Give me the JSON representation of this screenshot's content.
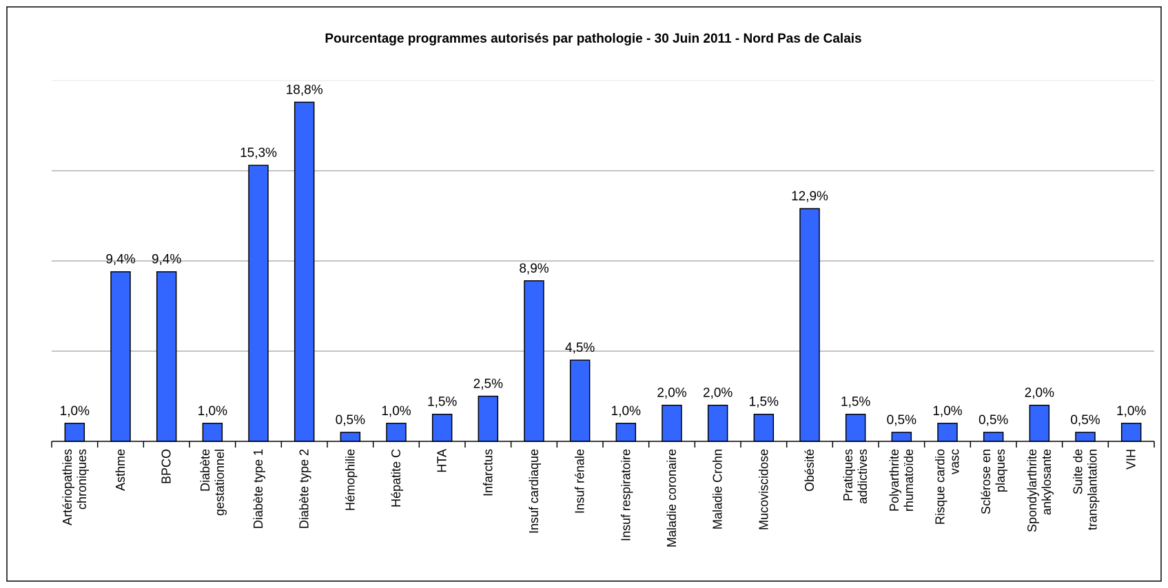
{
  "chart_data": {
    "type": "bar",
    "title": "Pourcentage programmes autorisés par pathologie - 30 Juin 2011 - Nord Pas de Calais",
    "xlabel": "",
    "ylabel": "",
    "ylim": [
      0,
      20
    ],
    "grid": true,
    "gridlines": [
      5,
      10,
      15,
      20
    ],
    "legend": "none",
    "bar_color": "#3366ff",
    "categories": [
      [
        "Artériopathies",
        "chroniques"
      ],
      [
        "Asthme"
      ],
      [
        "BPCO"
      ],
      [
        "Diabète",
        "gestationnel"
      ],
      [
        "Diabète type 1"
      ],
      [
        "Diabète type 2"
      ],
      [
        "Hémophilie"
      ],
      [
        "Hépatite C"
      ],
      [
        "HTA"
      ],
      [
        "Infarctus"
      ],
      [
        "Insuf cardiaque"
      ],
      [
        "Insuf rénale"
      ],
      [
        "Insuf respiratoire"
      ],
      [
        "Maladie coronaire"
      ],
      [
        "Maladie Crohn"
      ],
      [
        "Mucoviscidose"
      ],
      [
        "Obésité"
      ],
      [
        "Pratiques",
        "addictives"
      ],
      [
        "Polyarthrite",
        "rhumatoïde"
      ],
      [
        "Risque cardio",
        "vasc"
      ],
      [
        "Sclérose en",
        "plaques"
      ],
      [
        "Spondylarthrite",
        "ankylosante"
      ],
      [
        "Suite de",
        "transplantation"
      ],
      [
        "VIH"
      ]
    ],
    "values": [
      1.0,
      9.4,
      9.4,
      1.0,
      15.3,
      18.8,
      0.5,
      1.0,
      1.5,
      2.5,
      8.9,
      4.5,
      1.0,
      2.0,
      2.0,
      1.5,
      12.9,
      1.5,
      0.5,
      1.0,
      0.5,
      2.0,
      0.5,
      1.0
    ],
    "value_labels": [
      "1,0%",
      "9,4%",
      "9,4%",
      "1,0%",
      "15,3%",
      "18,8%",
      "0,5%",
      "1,0%",
      "1,5%",
      "2,5%",
      "8,9%",
      "4,5%",
      "1,0%",
      "2,0%",
      "2,0%",
      "1,5%",
      "12,9%",
      "1,5%",
      "0,5%",
      "1,0%",
      "0,5%",
      "2,0%",
      "0,5%",
      "1,0%"
    ]
  }
}
